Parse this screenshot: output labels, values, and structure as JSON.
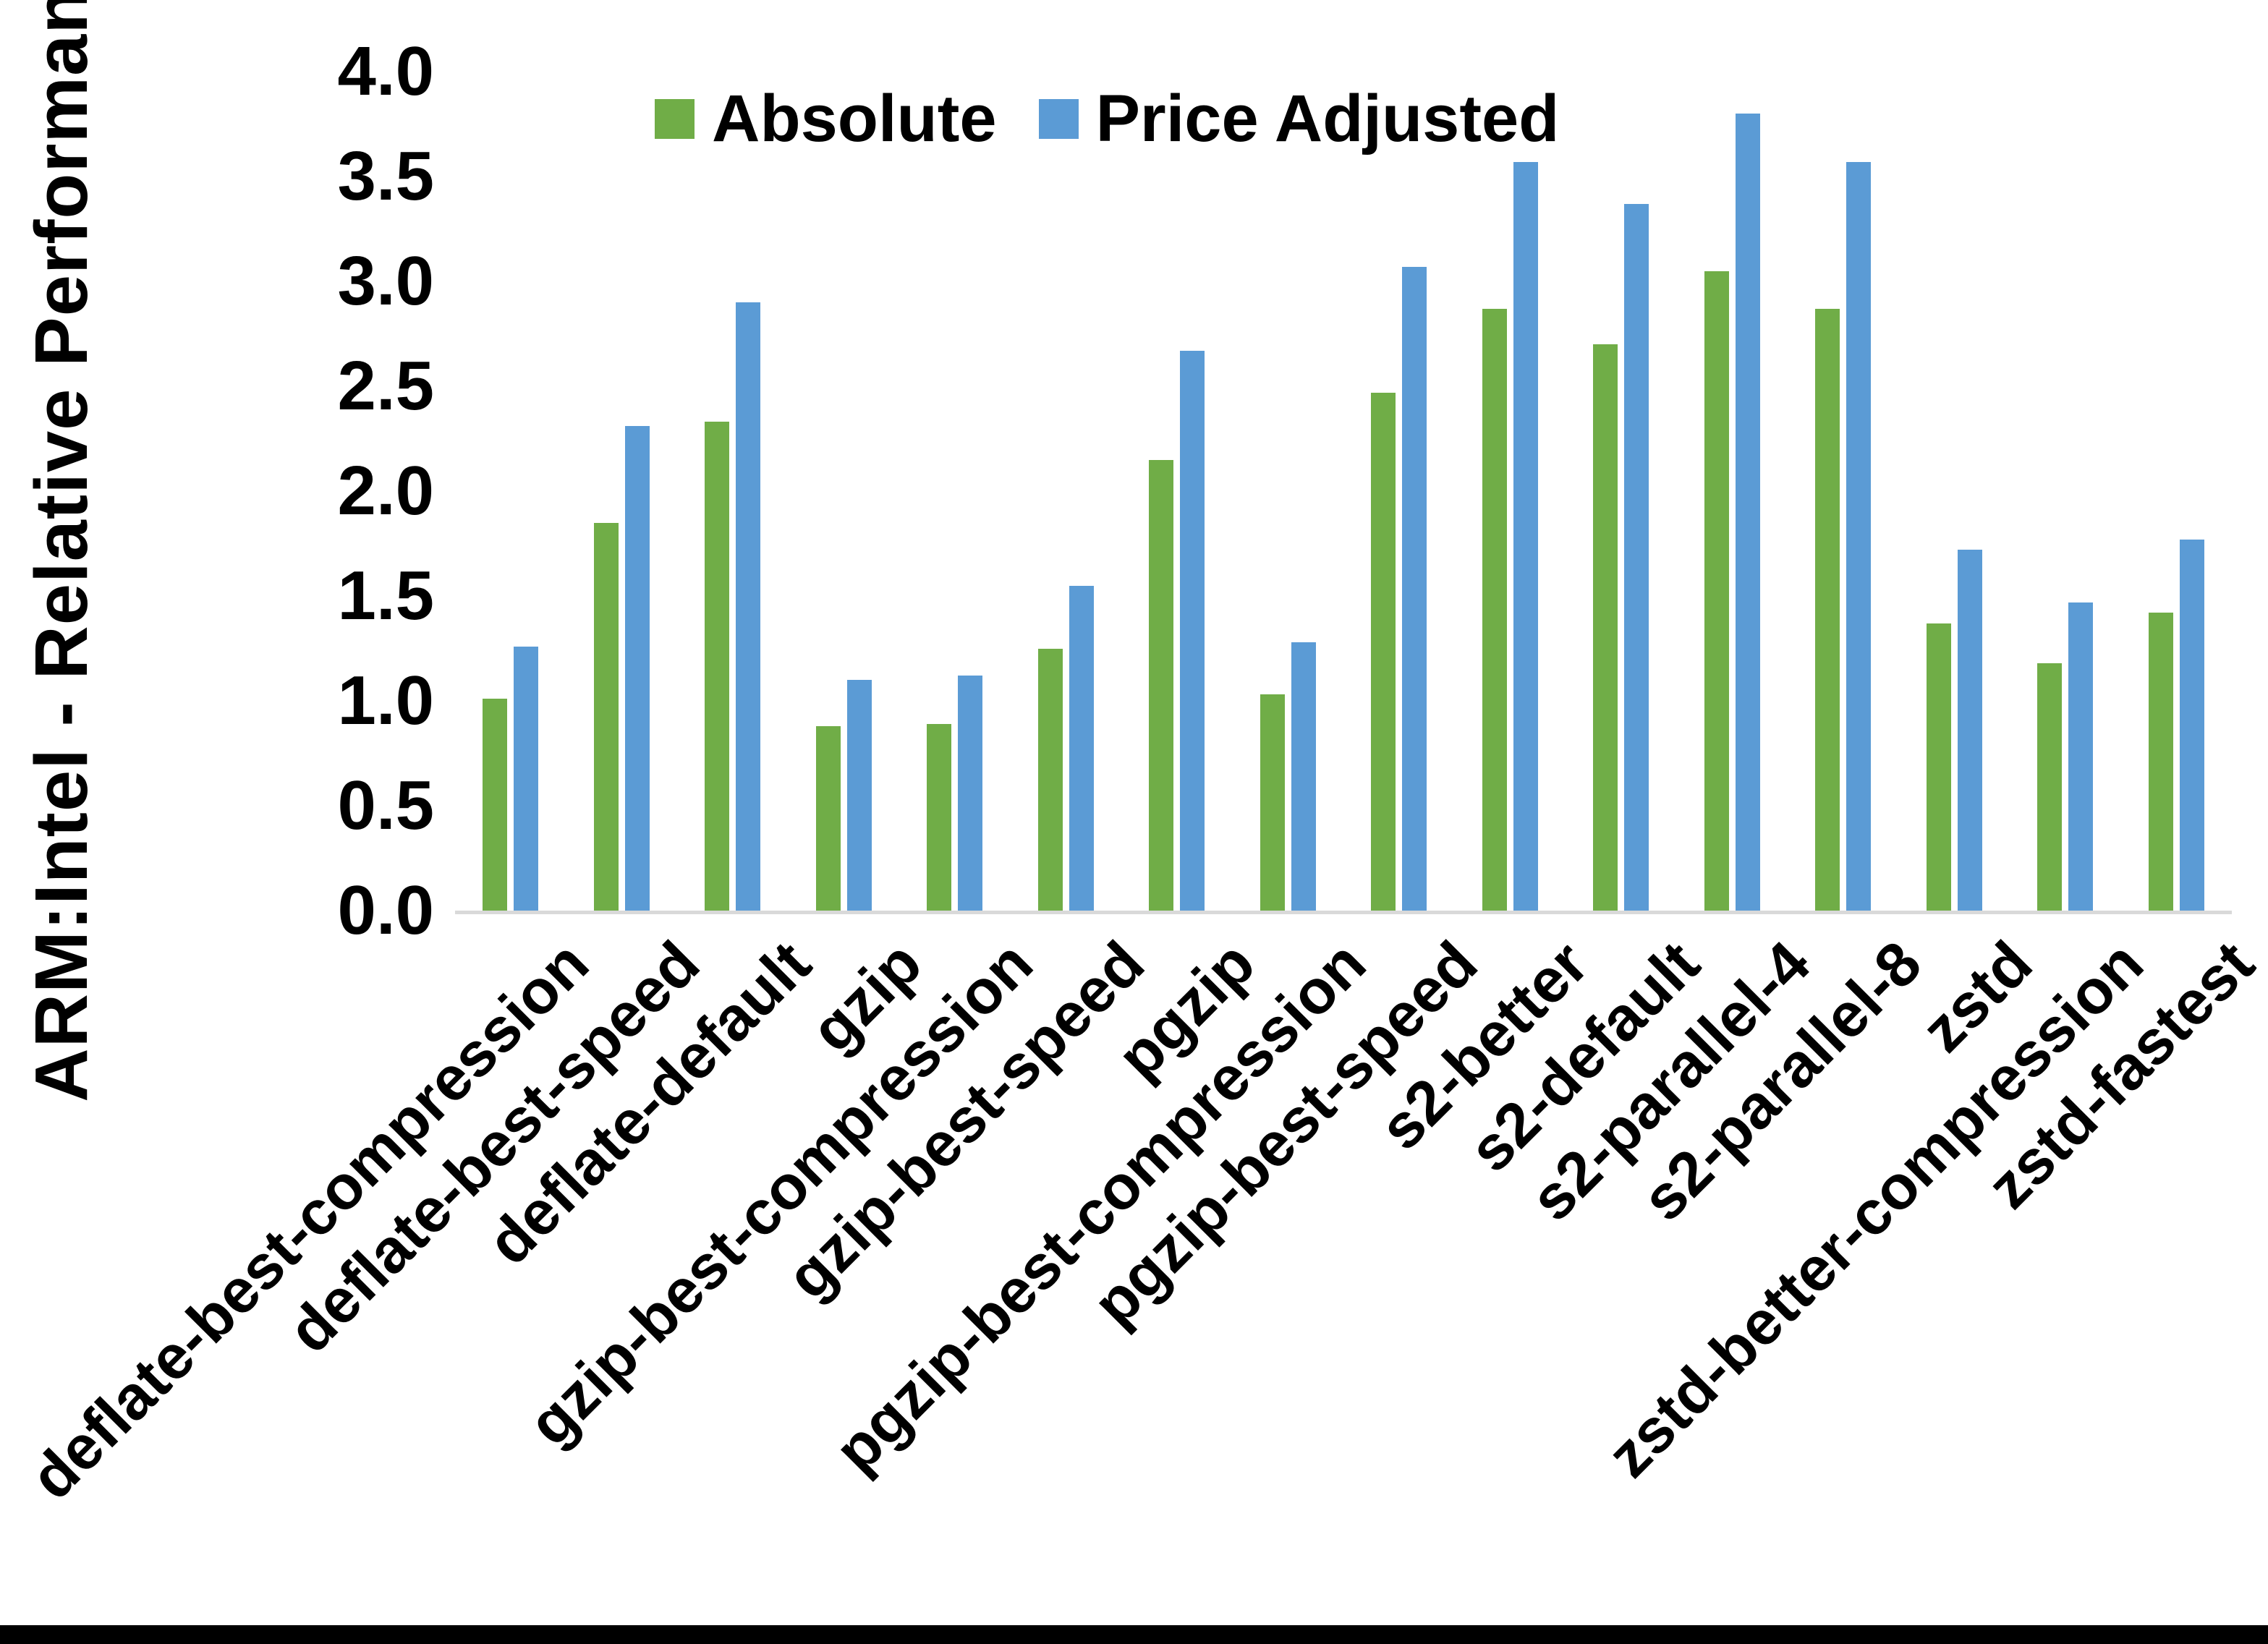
{
  "chart_data": {
    "type": "bar",
    "title": "",
    "ylabel": "ARM:Intel - Relative Performance",
    "xlabel": "",
    "ylim": [
      0,
      4.0
    ],
    "ytick_step": 0.5,
    "grid": false,
    "legend_position": "top-center-inside",
    "axis_line_color": "#D9D9D9",
    "categories": [
      "deflate-best-compression",
      "deflate-best-speed",
      "deflate-default",
      "gzip",
      "gzip-best-compression",
      "gzip-best-speed",
      "pgzip",
      "pgzip-best-compression",
      "pgzip-best-speed",
      "s2-better",
      "s2-default",
      "s2-parallel-4",
      "s2-parallel-8",
      "zstd",
      "zstd-better-compression",
      "zstd-fastest"
    ],
    "series": [
      {
        "name": "Absolute",
        "color": "#70AD47",
        "values": [
          1.01,
          1.85,
          2.33,
          0.88,
          0.89,
          1.25,
          2.15,
          1.03,
          2.47,
          2.87,
          2.7,
          3.05,
          2.87,
          1.37,
          1.18,
          1.42
        ]
      },
      {
        "name": "Price Adjusted",
        "color": "#5B9BD5",
        "values": [
          1.26,
          2.31,
          2.9,
          1.1,
          1.12,
          1.55,
          2.67,
          1.28,
          3.07,
          3.57,
          3.37,
          3.8,
          3.57,
          1.72,
          1.47,
          1.77
        ]
      }
    ]
  }
}
